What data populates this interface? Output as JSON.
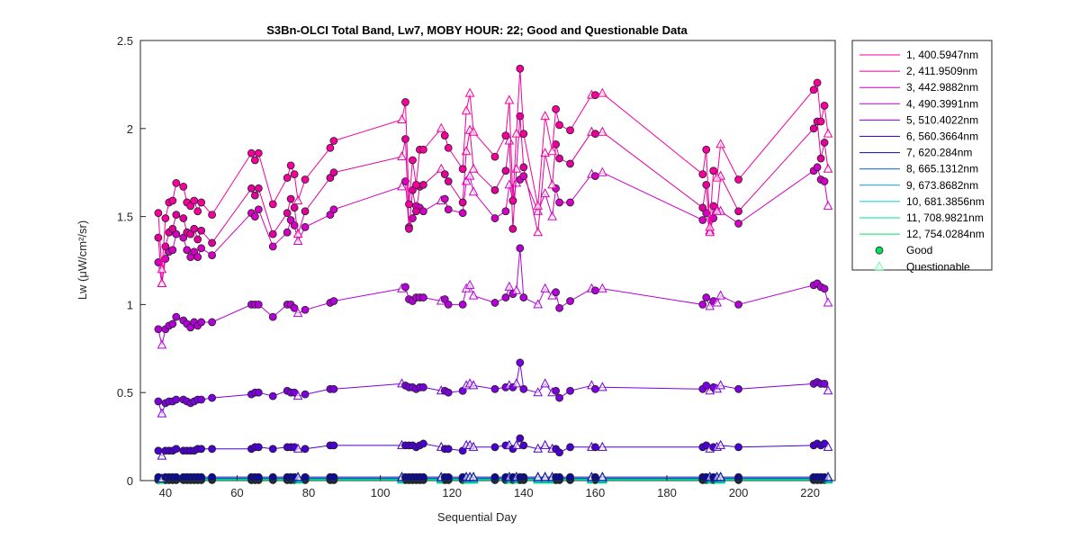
{
  "chart_data": {
    "type": "line",
    "title": "S3Bn-OLCI Total Band,  Lw7, MOBY HOUR: 22;  Good and Questionable Data",
    "xlabel": "Sequential Day",
    "ylabel": "Lw (μW/cm²/sr)",
    "xlim": [
      33,
      227
    ],
    "ylim": [
      0,
      2.5
    ],
    "xticks": [
      "40",
      "60",
      "80",
      "100",
      "120",
      "140",
      "160",
      "180",
      "200",
      "220"
    ],
    "yticks": [
      "0",
      "0.5",
      "1",
      "1.5",
      "2",
      "2.5"
    ],
    "grid": false,
    "legend_position": "outside-right",
    "x": [
      38,
      39,
      40,
      41,
      42,
      43,
      45,
      46,
      47,
      48,
      49,
      50,
      53,
      64,
      65,
      66,
      70,
      74,
      75,
      76,
      77,
      79,
      86,
      87,
      106,
      107,
      108,
      109,
      110,
      111,
      112,
      117,
      118,
      119,
      123,
      124,
      125,
      126,
      132,
      135,
      136,
      137,
      138,
      139,
      140,
      144,
      146,
      148,
      149,
      150,
      153,
      159,
      160,
      162,
      190,
      191,
      192,
      193,
      194,
      195,
      200,
      221,
      222,
      223,
      224,
      225
    ],
    "quality": [
      "G",
      "Q",
      "G",
      "G",
      "G",
      "G",
      "G",
      "G",
      "G",
      "G",
      "G",
      "G",
      "G",
      "G",
      "G",
      "G",
      "G",
      "G",
      "G",
      "G",
      "Q",
      "G",
      "G",
      "G",
      "Q",
      "G",
      "G",
      "G",
      "G",
      "G",
      "G",
      "Q",
      "G",
      "G",
      "G",
      "Q",
      "Q",
      "Q",
      "G",
      "G",
      "Q",
      "G",
      "Q",
      "G",
      "G",
      "Q",
      "Q",
      "Q",
      "G",
      "G",
      "G",
      "Q",
      "G",
      "Q",
      "G",
      "G",
      "Q",
      "G",
      "Q",
      "Q",
      "G",
      "G",
      "G",
      "G",
      "G",
      "Q"
    ],
    "series": [
      {
        "name": "1, 400.5947nm",
        "color": "#f7009b",
        "values": [
          1.52,
          1.2,
          1.49,
          1.58,
          1.59,
          1.69,
          1.67,
          1.58,
          1.56,
          1.59,
          1.53,
          1.58,
          1.51,
          1.86,
          1.82,
          1.86,
          1.57,
          1.72,
          1.79,
          1.74,
          1.59,
          1.71,
          1.89,
          1.93,
          2.05,
          2.15,
          1.57,
          1.82,
          1.68,
          1.88,
          1.88,
          2.0,
          1.96,
          1.89,
          1.77,
          2.1,
          2.2,
          1.98,
          1.84,
          1.96,
          2.16,
          1.59,
          1.97,
          2.34,
          1.97,
          1.56,
          2.07,
          1.87,
          2.11,
          2.02,
          1.99,
          2.19,
          2.19,
          2.2,
          1.74,
          1.88,
          1.44,
          1.76,
          1.72,
          1.91,
          1.71,
          2.22,
          2.26,
          2.04,
          2.13,
          1.97
        ]
      },
      {
        "name": "2, 411.9509nm",
        "color": "#e2009c",
        "values": [
          1.38,
          1.12,
          1.33,
          1.41,
          1.43,
          1.51,
          1.49,
          1.41,
          1.4,
          1.43,
          1.37,
          1.42,
          1.35,
          1.66,
          1.62,
          1.66,
          1.4,
          1.52,
          1.6,
          1.55,
          1.4,
          1.53,
          1.72,
          1.75,
          1.84,
          1.94,
          1.43,
          1.65,
          1.53,
          1.67,
          1.68,
          1.77,
          1.74,
          1.7,
          1.58,
          1.87,
          1.99,
          1.77,
          1.65,
          1.76,
          1.93,
          1.43,
          1.77,
          2.07,
          1.78,
          1.41,
          1.86,
          1.68,
          1.91,
          1.83,
          1.8,
          1.98,
          1.97,
          1.98,
          1.55,
          1.68,
          1.41,
          1.56,
          1.53,
          1.73,
          1.53,
          2.0,
          2.04,
          1.83,
          1.92,
          1.77
        ]
      },
      {
        "name": "3, 442.9882nm",
        "color": "#d400c4",
        "values": [
          1.24,
          1.12,
          1.26,
          1.3,
          1.31,
          1.4,
          1.38,
          1.31,
          1.27,
          1.3,
          1.27,
          1.32,
          1.28,
          1.52,
          1.5,
          1.54,
          1.33,
          1.41,
          1.48,
          1.45,
          1.36,
          1.44,
          1.51,
          1.54,
          1.67,
          1.7,
          1.44,
          1.49,
          1.56,
          1.55,
          1.53,
          1.59,
          1.6,
          1.54,
          1.52,
          1.7,
          1.73,
          1.64,
          1.49,
          1.53,
          1.68,
          1.59,
          1.69,
          1.71,
          1.73,
          1.53,
          1.63,
          1.5,
          1.66,
          1.58,
          1.58,
          1.74,
          1.73,
          1.75,
          1.48,
          1.52,
          1.42,
          1.49,
          1.54,
          1.53,
          1.46,
          1.76,
          1.78,
          1.71,
          1.7,
          1.56
        ]
      },
      {
        "name": "4, 490.3991nm",
        "color": "#b400d8",
        "values": [
          0.86,
          0.77,
          0.86,
          0.88,
          0.89,
          0.93,
          0.91,
          0.89,
          0.87,
          0.9,
          0.88,
          0.9,
          0.9,
          1.0,
          1.0,
          1.0,
          0.93,
          1.0,
          1.0,
          0.98,
          0.95,
          0.97,
          1.01,
          1.02,
          1.09,
          1.1,
          1.03,
          1.02,
          1.04,
          1.04,
          1.04,
          1.02,
          1.03,
          1.0,
          1.0,
          1.09,
          1.11,
          1.05,
          1.01,
          1.04,
          1.1,
          1.06,
          1.08,
          1.32,
          1.04,
          1.0,
          1.09,
          1.05,
          1.07,
          0.98,
          1.02,
          1.09,
          1.08,
          1.09,
          1.0,
          1.04,
          0.99,
          1.02,
          1.01,
          1.05,
          1.0,
          1.11,
          1.12,
          1.1,
          1.09,
          1.01
        ]
      },
      {
        "name": "5, 510.4022nm",
        "color": "#7c00e0",
        "values": [
          0.45,
          0.38,
          0.44,
          0.45,
          0.45,
          0.46,
          0.46,
          0.45,
          0.44,
          0.45,
          0.46,
          0.46,
          0.47,
          0.49,
          0.5,
          0.5,
          0.48,
          0.51,
          0.5,
          0.5,
          0.48,
          0.49,
          0.52,
          0.52,
          0.55,
          0.54,
          0.53,
          0.53,
          0.52,
          0.53,
          0.53,
          0.51,
          0.51,
          0.5,
          0.51,
          0.54,
          0.55,
          0.54,
          0.52,
          0.53,
          0.54,
          0.53,
          0.55,
          0.67,
          0.52,
          0.5,
          0.55,
          0.5,
          0.51,
          0.47,
          0.51,
          0.54,
          0.52,
          0.53,
          0.52,
          0.54,
          0.51,
          0.53,
          0.52,
          0.54,
          0.52,
          0.55,
          0.56,
          0.55,
          0.55,
          0.51
        ]
      },
      {
        "name": "6, 560.3664nm",
        "color": "#4a00d0",
        "values": [
          0.17,
          0.14,
          0.17,
          0.17,
          0.17,
          0.18,
          0.17,
          0.17,
          0.17,
          0.17,
          0.18,
          0.18,
          0.18,
          0.18,
          0.19,
          0.19,
          0.18,
          0.19,
          0.19,
          0.19,
          0.18,
          0.18,
          0.2,
          0.2,
          0.2,
          0.2,
          0.2,
          0.2,
          0.19,
          0.2,
          0.21,
          0.19,
          0.18,
          0.18,
          0.17,
          0.2,
          0.2,
          0.19,
          0.19,
          0.2,
          0.2,
          0.18,
          0.2,
          0.24,
          0.2,
          0.18,
          0.2,
          0.18,
          0.18,
          0.16,
          0.19,
          0.19,
          0.19,
          0.19,
          0.19,
          0.2,
          0.18,
          0.19,
          0.19,
          0.2,
          0.19,
          0.2,
          0.21,
          0.2,
          0.21,
          0.19
        ]
      },
      {
        "name": "7,  620.284nm",
        "color": "#0c0c9c",
        "values": [
          0.02,
          0.01,
          0.02,
          0.02,
          0.02,
          0.02,
          0.02,
          0.02,
          0.02,
          0.02,
          0.02,
          0.02,
          0.02,
          0.02,
          0.02,
          0.02,
          0.02,
          0.02,
          0.02,
          0.02,
          0.02,
          0.02,
          0.02,
          0.02,
          0.02,
          0.02,
          0.02,
          0.02,
          0.02,
          0.02,
          0.02,
          0.02,
          0.02,
          0.02,
          0.02,
          0.02,
          0.02,
          0.02,
          0.02,
          0.02,
          0.02,
          0.02,
          0.02,
          0.02,
          0.02,
          0.02,
          0.02,
          0.02,
          0.02,
          0.02,
          0.02,
          0.02,
          0.02,
          0.02,
          0.02,
          0.02,
          0.02,
          0.02,
          0.02,
          0.02,
          0.02,
          0.02,
          0.02,
          0.02,
          0.02,
          0.02
        ]
      },
      {
        "name": "8,  665.1312nm",
        "color": "#0060c8",
        "values": [
          0.013,
          0.01,
          0.013,
          0.013,
          0.013,
          0.013,
          0.013,
          0.013,
          0.013,
          0.013,
          0.013,
          0.013,
          0.013,
          0.013,
          0.013,
          0.013,
          0.013,
          0.013,
          0.013,
          0.013,
          0.013,
          0.013,
          0.013,
          0.013,
          0.013,
          0.013,
          0.013,
          0.013,
          0.013,
          0.013,
          0.013,
          0.013,
          0.013,
          0.013,
          0.013,
          0.013,
          0.013,
          0.013,
          0.013,
          0.013,
          0.013,
          0.013,
          0.013,
          0.013,
          0.013,
          0.013,
          0.013,
          0.013,
          0.013,
          0.013,
          0.013,
          0.013,
          0.013,
          0.013,
          0.013,
          0.013,
          0.013,
          0.013,
          0.013,
          0.013,
          0.013,
          0.013,
          0.013,
          0.013,
          0.013,
          0.013
        ]
      },
      {
        "name": "9,  673.8682nm",
        "color": "#00a0e0",
        "values": [
          0.012,
          0.009,
          0.012,
          0.012,
          0.012,
          0.012,
          0.012,
          0.012,
          0.012,
          0.012,
          0.012,
          0.012,
          0.012,
          0.012,
          0.012,
          0.012,
          0.012,
          0.012,
          0.012,
          0.012,
          0.012,
          0.012,
          0.012,
          0.012,
          0.012,
          0.012,
          0.012,
          0.012,
          0.012,
          0.012,
          0.012,
          0.012,
          0.012,
          0.012,
          0.012,
          0.012,
          0.012,
          0.012,
          0.012,
          0.012,
          0.012,
          0.012,
          0.012,
          0.012,
          0.012,
          0.012,
          0.012,
          0.012,
          0.012,
          0.012,
          0.012,
          0.012,
          0.012,
          0.012,
          0.012,
          0.012,
          0.012,
          0.012,
          0.012,
          0.012,
          0.012,
          0.012,
          0.012,
          0.012,
          0.012,
          0.012
        ]
      },
      {
        "name": "10,  681.3856nm",
        "color": "#00d0d0",
        "values": [
          0.01,
          0.008,
          0.01,
          0.01,
          0.01,
          0.01,
          0.01,
          0.01,
          0.01,
          0.01,
          0.01,
          0.01,
          0.01,
          0.01,
          0.01,
          0.01,
          0.01,
          0.01,
          0.01,
          0.01,
          0.01,
          0.01,
          0.01,
          0.01,
          0.01,
          0.01,
          0.01,
          0.01,
          0.01,
          0.01,
          0.01,
          0.01,
          0.01,
          0.01,
          0.01,
          0.01,
          0.01,
          0.01,
          0.01,
          0.01,
          0.01,
          0.01,
          0.01,
          0.01,
          0.01,
          0.01,
          0.01,
          0.01,
          0.01,
          0.01,
          0.01,
          0.01,
          0.01,
          0.01,
          0.01,
          0.01,
          0.01,
          0.01,
          0.01,
          0.01,
          0.01,
          0.01,
          0.01,
          0.01,
          0.01,
          0.01
        ]
      },
      {
        "name": "11,  708.9821nm",
        "color": "#00e09a",
        "values": [
          0.006,
          0.005,
          0.006,
          0.006,
          0.006,
          0.006,
          0.006,
          0.006,
          0.006,
          0.006,
          0.006,
          0.006,
          0.006,
          0.006,
          0.006,
          0.006,
          0.006,
          0.006,
          0.006,
          0.006,
          0.006,
          0.006,
          0.006,
          0.006,
          0.006,
          0.006,
          0.006,
          0.006,
          0.006,
          0.006,
          0.006,
          0.006,
          0.006,
          0.006,
          0.006,
          0.006,
          0.006,
          0.006,
          0.006,
          0.006,
          0.006,
          0.006,
          0.006,
          0.006,
          0.006,
          0.006,
          0.006,
          0.006,
          0.006,
          0.006,
          0.006,
          0.006,
          0.006,
          0.006,
          0.006,
          0.006,
          0.006,
          0.006,
          0.006,
          0.006,
          0.006,
          0.006,
          0.006,
          0.006,
          0.006,
          0.006
        ]
      },
      {
        "name": "12,  754.0284nm",
        "color": "#00e060",
        "values": [
          0.003,
          0.002,
          0.003,
          0.003,
          0.003,
          0.003,
          0.003,
          0.003,
          0.003,
          0.003,
          0.003,
          0.003,
          0.003,
          0.003,
          0.003,
          0.003,
          0.003,
          0.003,
          0.003,
          0.003,
          0.003,
          0.003,
          0.003,
          0.003,
          0.003,
          0.003,
          0.003,
          0.003,
          0.003,
          0.003,
          0.003,
          0.003,
          0.003,
          0.003,
          0.003,
          0.003,
          0.003,
          0.003,
          0.003,
          0.003,
          0.003,
          0.003,
          0.003,
          0.003,
          0.003,
          0.003,
          0.003,
          0.003,
          0.003,
          0.003,
          0.003,
          0.003,
          0.003,
          0.003,
          0.003,
          0.003,
          0.003,
          0.003,
          0.003,
          0.003,
          0.003,
          0.003,
          0.003,
          0.003,
          0.003,
          0.003
        ]
      }
    ],
    "legend_markers": [
      {
        "label": "Good",
        "marker": "circle",
        "color": "#00e060"
      },
      {
        "label": "Questionable",
        "marker": "triangle",
        "color": "#60ffa0"
      }
    ]
  }
}
